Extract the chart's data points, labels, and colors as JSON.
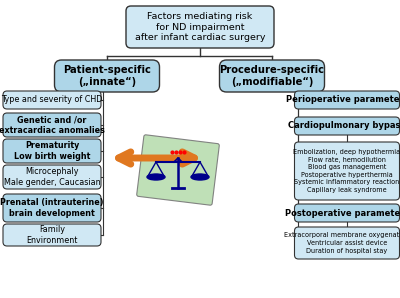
{
  "title": "Factors mediating risk\nfor ND impairment\nafter infant cardiac surgery",
  "left_header": "Patient-specific\n(„innate“)",
  "right_header": "Procedure-specific\n(„modifiable“)",
  "left_boxes": [
    "Type and severity of CHD",
    "Genetic and /or\nextracardiac anomalies",
    "Prematurity\nLow birth weight",
    "Microcephaly\nMale gender, Caucasian",
    "Prenatal (intrauterine)\nbrain development",
    "Family\nEnvironment"
  ],
  "left_bold": [
    false,
    true,
    true,
    false,
    true,
    false
  ],
  "right_boxes": [
    "Perioperative parameters",
    "Cardiopulmonary bypass"
  ],
  "bypass_detail": "Embolization, deep hypothermia\nFlow rate, hemodilution\nBlood gas management\nPostoperative hyperthermia\nSystemic inflammatory reaction\nCapillary leak syndrome",
  "postop_box": "Postoperative parameters",
  "postop_detail": "Extracorporal membrane oxygenation\nVentricular assist device\nDuration of hospital stay",
  "box_color_main": "#aed6e8",
  "box_color_light": "#d0e8f4",
  "box_edge_color": "#333333",
  "arrow_color": "#e07820",
  "bg_color": "#ffffff",
  "fig_width": 4.0,
  "fig_height": 2.98
}
